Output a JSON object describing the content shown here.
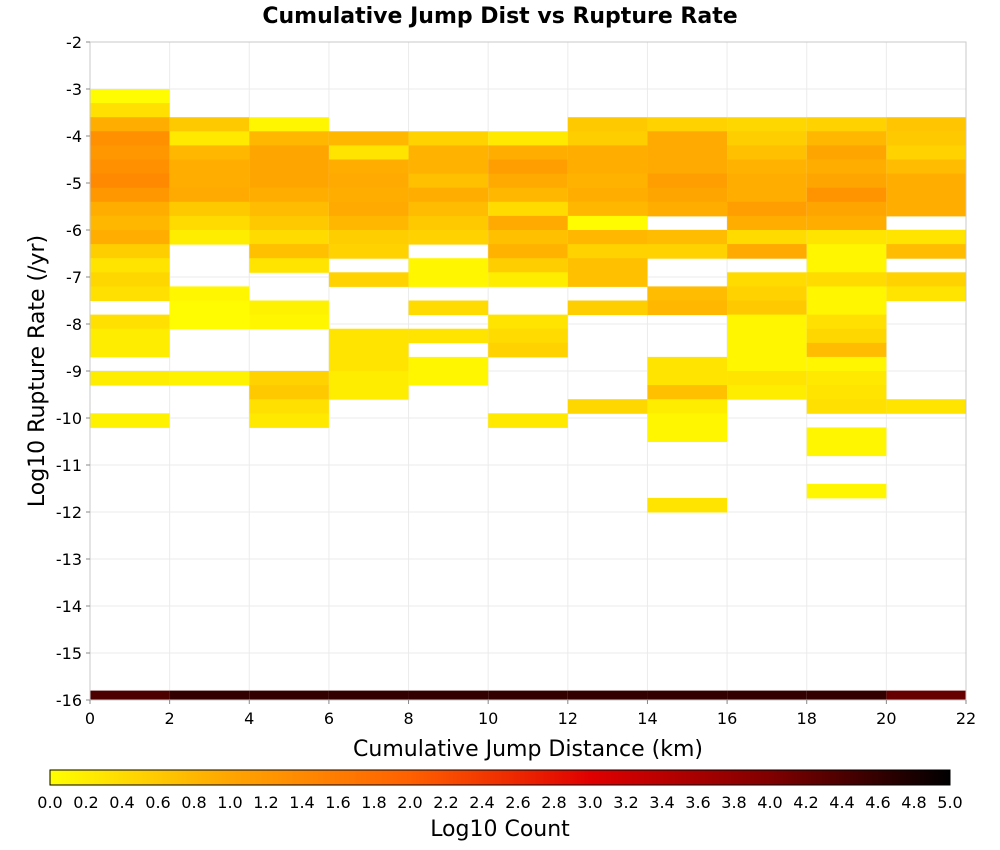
{
  "chart_data": {
    "type": "heatmap",
    "title": "Cumulative Jump Dist vs Rupture Rate",
    "xlabel": "Cumulative Jump Distance (km)",
    "ylabel": "Log10 Rupture Rate (/yr)",
    "xlim": [
      0,
      22
    ],
    "ylim": [
      -16,
      -2
    ],
    "x_ticks": [
      "0",
      "2",
      "4",
      "6",
      "8",
      "10",
      "12",
      "14",
      "16",
      "18",
      "20",
      "22"
    ],
    "y_ticks": [
      "-2",
      "-3",
      "-4",
      "-5",
      "-6",
      "-7",
      "-8",
      "-9",
      "-10",
      "-11",
      "-12",
      "-13",
      "-14",
      "-15",
      "-16"
    ],
    "x_bin_width": 2,
    "y_bin_height": 0.3,
    "grid": true,
    "colorbar": {
      "label": "Log10 Count",
      "range": [
        0,
        5
      ],
      "ticks": [
        "0.0",
        "0.2",
        "0.4",
        "0.6",
        "0.8",
        "1.0",
        "1.2",
        "1.4",
        "1.6",
        "1.8",
        "2.0",
        "2.2",
        "2.4",
        "2.6",
        "2.8",
        "3.0",
        "3.2",
        "3.4",
        "3.6",
        "3.8",
        "4.0",
        "4.2",
        "4.4",
        "4.6",
        "4.8",
        "5.0"
      ],
      "colors": [
        "#ffff00",
        "#ffa500",
        "#ff6000",
        "#e00000",
        "#800000",
        "#000000"
      ]
    },
    "columns": [
      {
        "x": 0,
        "cells": [
          [
            -3.0,
            0.05
          ],
          [
            -3.3,
            0.35
          ],
          [
            -3.6,
            0.9
          ],
          [
            -3.9,
            1.3
          ],
          [
            -4.2,
            1.2
          ],
          [
            -4.5,
            1.3
          ],
          [
            -4.8,
            1.4
          ],
          [
            -5.1,
            1.2
          ],
          [
            -5.4,
            0.9
          ],
          [
            -5.7,
            0.8
          ],
          [
            -6.0,
            0.9
          ],
          [
            -6.3,
            0.55
          ],
          [
            -6.6,
            0.3
          ],
          [
            -6.9,
            0.45
          ],
          [
            -7.2,
            0.35
          ],
          [
            -7.8,
            0.35
          ],
          [
            -8.1,
            0.2
          ],
          [
            -8.4,
            0.2
          ],
          [
            -9.0,
            0.2
          ],
          [
            -9.9,
            0.15
          ]
        ]
      },
      {
        "x": 2,
        "cells": [
          [
            -3.6,
            0.6
          ],
          [
            -3.9,
            0.25
          ],
          [
            -4.2,
            0.8
          ],
          [
            -4.5,
            0.9
          ],
          [
            -4.8,
            0.9
          ],
          [
            -5.1,
            0.95
          ],
          [
            -5.4,
            0.6
          ],
          [
            -5.7,
            0.4
          ],
          [
            -6.0,
            0.2
          ],
          [
            -7.2,
            0.1
          ],
          [
            -7.5,
            0.05
          ],
          [
            -7.8,
            0.05
          ],
          [
            -9.0,
            0.15
          ]
        ]
      },
      {
        "x": 4,
        "cells": [
          [
            -3.6,
            0.1
          ],
          [
            -3.9,
            0.8
          ],
          [
            -4.2,
            1.0
          ],
          [
            -4.5,
            1.0
          ],
          [
            -4.8,
            1.0
          ],
          [
            -5.1,
            0.9
          ],
          [
            -5.4,
            0.75
          ],
          [
            -5.7,
            0.6
          ],
          [
            -6.0,
            0.4
          ],
          [
            -6.3,
            0.7
          ],
          [
            -6.6,
            0.3
          ],
          [
            -7.5,
            0.15
          ],
          [
            -7.8,
            0.1
          ],
          [
            -9.0,
            0.5
          ],
          [
            -9.3,
            0.6
          ],
          [
            -9.6,
            0.35
          ],
          [
            -9.9,
            0.25
          ]
        ]
      },
      {
        "x": 6,
        "cells": [
          [
            -3.9,
            0.8
          ],
          [
            -4.2,
            0.3
          ],
          [
            -4.5,
            0.9
          ],
          [
            -4.8,
            0.95
          ],
          [
            -5.1,
            0.9
          ],
          [
            -5.4,
            0.95
          ],
          [
            -5.7,
            0.8
          ],
          [
            -6.0,
            0.55
          ],
          [
            -6.3,
            0.5
          ],
          [
            -6.9,
            0.5
          ],
          [
            -8.1,
            0.3
          ],
          [
            -8.4,
            0.3
          ],
          [
            -8.7,
            0.3
          ],
          [
            -9.0,
            0.2
          ],
          [
            -9.3,
            0.2
          ]
        ]
      },
      {
        "x": 8,
        "cells": [
          [
            -3.9,
            0.5
          ],
          [
            -4.2,
            0.85
          ],
          [
            -4.5,
            0.85
          ],
          [
            -4.8,
            0.7
          ],
          [
            -5.1,
            0.9
          ],
          [
            -5.4,
            0.75
          ],
          [
            -5.7,
            0.6
          ],
          [
            -6.0,
            0.5
          ],
          [
            -6.6,
            0.1
          ],
          [
            -6.9,
            0.1
          ],
          [
            -7.5,
            0.4
          ],
          [
            -8.1,
            0.3
          ],
          [
            -8.7,
            0.1
          ],
          [
            -9.0,
            0.1
          ]
        ]
      },
      {
        "x": 10,
        "cells": [
          [
            -3.9,
            0.25
          ],
          [
            -4.2,
            0.9
          ],
          [
            -4.5,
            1.1
          ],
          [
            -4.8,
            0.95
          ],
          [
            -5.1,
            0.8
          ],
          [
            -5.4,
            0.4
          ],
          [
            -5.7,
            0.95
          ],
          [
            -6.0,
            0.7
          ],
          [
            -6.3,
            0.85
          ],
          [
            -6.6,
            0.55
          ],
          [
            -6.9,
            0.2
          ],
          [
            -7.8,
            0.3
          ],
          [
            -8.1,
            0.4
          ],
          [
            -8.4,
            0.5
          ],
          [
            -9.9,
            0.25
          ]
        ]
      },
      {
        "x": 12,
        "cells": [
          [
            -3.6,
            0.6
          ],
          [
            -3.9,
            0.55
          ],
          [
            -4.2,
            0.9
          ],
          [
            -4.5,
            0.9
          ],
          [
            -4.8,
            0.85
          ],
          [
            -5.1,
            0.9
          ],
          [
            -5.4,
            0.8
          ],
          [
            -5.7,
            0.05
          ],
          [
            -6.0,
            0.8
          ],
          [
            -6.3,
            0.5
          ],
          [
            -6.6,
            0.7
          ],
          [
            -6.9,
            0.7
          ],
          [
            -7.5,
            0.55
          ],
          [
            -9.6,
            0.45
          ]
        ]
      },
      {
        "x": 14,
        "cells": [
          [
            -3.6,
            0.5
          ],
          [
            -3.9,
            0.95
          ],
          [
            -4.2,
            0.95
          ],
          [
            -4.5,
            0.95
          ],
          [
            -4.8,
            1.1
          ],
          [
            -5.1,
            1.0
          ],
          [
            -5.4,
            0.9
          ],
          [
            -6.0,
            0.75
          ],
          [
            -6.3,
            0.5
          ],
          [
            -7.2,
            0.75
          ],
          [
            -7.5,
            0.8
          ],
          [
            -8.7,
            0.3
          ],
          [
            -9.0,
            0.3
          ],
          [
            -9.3,
            0.7
          ],
          [
            -9.6,
            0.2
          ],
          [
            -9.9,
            0.1
          ],
          [
            -10.2,
            0.1
          ],
          [
            -11.7,
            0.3
          ]
        ]
      },
      {
        "x": 16,
        "cells": [
          [
            -3.6,
            0.45
          ],
          [
            -3.9,
            0.55
          ],
          [
            -4.2,
            0.7
          ],
          [
            -4.5,
            0.85
          ],
          [
            -4.8,
            0.9
          ],
          [
            -5.1,
            0.9
          ],
          [
            -5.4,
            1.1
          ],
          [
            -5.7,
            0.9
          ],
          [
            -6.0,
            0.4
          ],
          [
            -6.3,
            0.95
          ],
          [
            -6.9,
            0.4
          ],
          [
            -7.2,
            0.5
          ],
          [
            -7.5,
            0.6
          ],
          [
            -7.8,
            0.1
          ],
          [
            -8.1,
            0.1
          ],
          [
            -8.4,
            0.1
          ],
          [
            -8.7,
            0.1
          ],
          [
            -9.0,
            0.3
          ],
          [
            -9.3,
            0.2
          ]
        ]
      },
      {
        "x": 18,
        "cells": [
          [
            -3.6,
            0.5
          ],
          [
            -3.9,
            0.8
          ],
          [
            -4.2,
            1.0
          ],
          [
            -4.5,
            0.9
          ],
          [
            -4.8,
            1.0
          ],
          [
            -5.1,
            1.25
          ],
          [
            -5.4,
            1.0
          ],
          [
            -5.7,
            0.9
          ],
          [
            -6.0,
            0.3
          ],
          [
            -6.3,
            0.1
          ],
          [
            -6.6,
            0.1
          ],
          [
            -6.9,
            0.4
          ],
          [
            -7.2,
            0.1
          ],
          [
            -7.5,
            0.1
          ],
          [
            -7.8,
            0.35
          ],
          [
            -8.1,
            0.45
          ],
          [
            -8.4,
            0.75
          ],
          [
            -8.7,
            0.1
          ],
          [
            -9.0,
            0.25
          ],
          [
            -9.3,
            0.3
          ],
          [
            -9.6,
            0.35
          ],
          [
            -10.2,
            0.1
          ],
          [
            -10.5,
            0.1
          ],
          [
            -11.4,
            0.1
          ]
        ]
      },
      {
        "x": 20,
        "cells": [
          [
            -3.6,
            0.65
          ],
          [
            -3.9,
            0.6
          ],
          [
            -4.2,
            0.5
          ],
          [
            -4.5,
            0.75
          ],
          [
            -4.8,
            0.9
          ],
          [
            -5.1,
            0.9
          ],
          [
            -5.4,
            0.9
          ],
          [
            -6.0,
            0.3
          ],
          [
            -6.3,
            0.75
          ],
          [
            -6.9,
            0.5
          ],
          [
            -7.2,
            0.3
          ],
          [
            -9.6,
            0.3
          ]
        ]
      }
    ],
    "floor_row": {
      "y": -16,
      "height": 0.2,
      "values": [
        4.4,
        4.6,
        4.6,
        4.6,
        4.6,
        4.6,
        4.6,
        4.6,
        4.6,
        4.6,
        4.2
      ]
    }
  }
}
